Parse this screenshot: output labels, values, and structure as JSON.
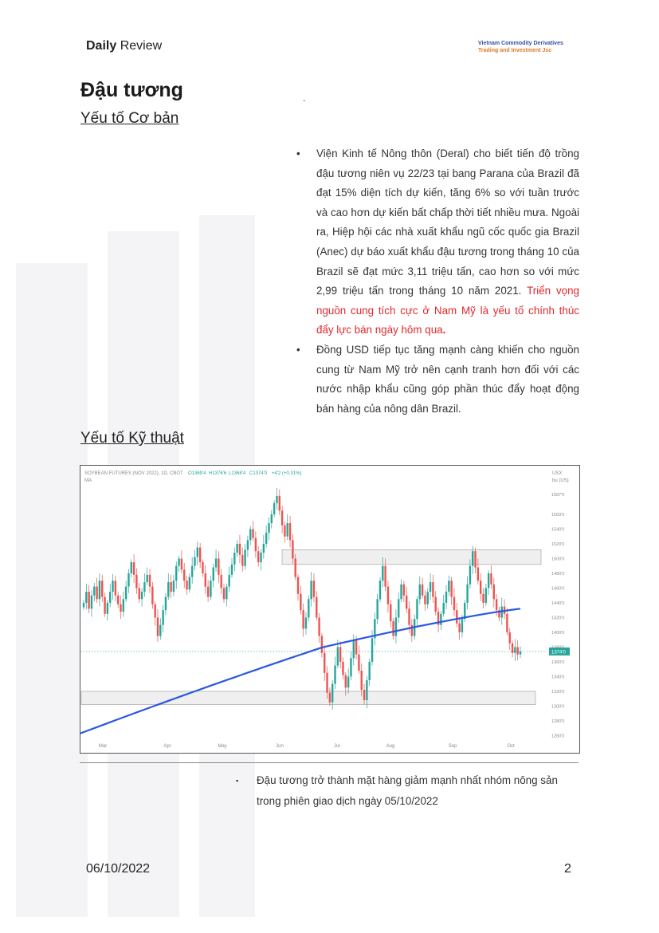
{
  "header": {
    "daily_bold": "Daily",
    "daily_rest": "Review",
    "company_line1": "Vietnam Commodity Derivatives",
    "company_line2": "Trading and Investment Jsc"
  },
  "page": {
    "title": "Đậu tương",
    "dot": ".",
    "section_fundamental": "Yếu tố Cơ bản",
    "section_technical": "Yếu tố Kỹ thuật"
  },
  "bullets": [
    {
      "text": "Viện Kinh tế Nông thôn (Deral) cho biết tiến độ trồng đậu tương niên vụ 22/23 tại bang Parana của Brazil đã đạt 15% diện tích dự kiến, tăng 6% so với tuần trước và cao hơn dự kiến bất chấp thời tiết nhiều mưa. Ngoài ra, Hiệp hội các nhà xuất khẩu ngũ cốc quốc gia Brazil (Anec) dự báo xuất khẩu đậu tương trong tháng 10 của Brazil sẽ đạt mức 3,11 triệu tấn, cao hơn so với mức 2,99 triệu tấn trong tháng 10 năm 2021. ",
      "highlight": "Triển vọng nguồn cung tích cực ở Nam Mỹ là yếu tố chính thúc đẩy lực bán ngày hôm qua",
      "end": "."
    },
    {
      "text": "Đồng USD tiếp tục tăng mạnh càng khiến cho nguồn cung từ Nam Mỹ trở nên cạnh tranh hơn đối với các nước nhập khẩu cũng góp phần thúc đẩy hoạt động bán hàng của nông dân Brazil."
    }
  ],
  "bullet_marker": "•",
  "caption": {
    "marker": "▪",
    "text": "Đậu tương trở thành mặt hàng giảm mạnh nhất nhóm nông sản trong phiên giao dịch ngày 05/10/2022"
  },
  "footer": {
    "date": "06/10/2022",
    "page_number": "2"
  },
  "chart_data": {
    "type": "candlestick",
    "title": "SOYBEAN FUTURES (NOV 2022), 1D, CBOT",
    "ohlc_label": {
      "o": "O1369'4",
      "h": "H1376'6",
      "l": "L1368'4",
      "c": "C1374'0",
      "change": "+4'2 (+0.31%)"
    },
    "indicator": "MA",
    "currency_label": "USX",
    "unit_label": "bu (US)",
    "last_price_label": "1374'0",
    "months": [
      "Mar",
      "Apr",
      "May",
      "Jun",
      "Jul",
      "Aug",
      "Sep",
      "Oct"
    ],
    "y_ticks": [
      "1587'0",
      "1560'0",
      "1540'0",
      "1520'0",
      "1500'0",
      "1480'0",
      "1460'0",
      "1440'0",
      "1420'0",
      "1400'0",
      "1380'0",
      "1360'0",
      "1340'0",
      "1320'0",
      "1300'0",
      "1280'0",
      "1260'0"
    ],
    "ylim": [
      1255,
      1600
    ],
    "last_price": 1374,
    "resistance_zone": [
      1492,
      1512
    ],
    "support_zone": [
      1302,
      1320
    ],
    "ma_start": 1263,
    "ma_end": 1432,
    "colors": {
      "up": "#26a69a",
      "down": "#ef5350",
      "ma": "#2a58e0",
      "zone": "#efefef"
    },
    "closes": [
      1440,
      1455,
      1432,
      1450,
      1462,
      1445,
      1470,
      1448,
      1425,
      1440,
      1455,
      1470,
      1450,
      1438,
      1428,
      1445,
      1462,
      1480,
      1495,
      1478,
      1460,
      1445,
      1455,
      1468,
      1478,
      1462,
      1438,
      1420,
      1395,
      1410,
      1430,
      1448,
      1468,
      1455,
      1470,
      1490,
      1500,
      1485,
      1470,
      1458,
      1475,
      1490,
      1502,
      1515,
      1495,
      1480,
      1462,
      1448,
      1470,
      1488,
      1500,
      1478,
      1460,
      1445,
      1462,
      1478,
      1492,
      1508,
      1520,
      1505,
      1490,
      1512,
      1525,
      1540,
      1528,
      1510,
      1495,
      1508,
      1520,
      1535,
      1548,
      1560,
      1575,
      1585,
      1565,
      1545,
      1530,
      1548,
      1525,
      1500,
      1475,
      1452,
      1430,
      1405,
      1420,
      1445,
      1470,
      1448,
      1420,
      1395,
      1372,
      1345,
      1318,
      1305,
      1330,
      1355,
      1380,
      1360,
      1342,
      1325,
      1340,
      1365,
      1390,
      1370,
      1348,
      1322,
      1308,
      1335,
      1360,
      1392,
      1418,
      1445,
      1470,
      1490,
      1462,
      1438,
      1415,
      1395,
      1420,
      1445,
      1465,
      1450,
      1432,
      1410,
      1395,
      1418,
      1445,
      1465,
      1450,
      1438,
      1455,
      1468,
      1448,
      1428,
      1410,
      1425,
      1440,
      1455,
      1470,
      1448,
      1430,
      1412,
      1400,
      1418,
      1440,
      1465,
      1490,
      1510,
      1488,
      1470,
      1452,
      1440,
      1460,
      1480,
      1465,
      1445,
      1430,
      1420,
      1435,
      1425,
      1400,
      1385,
      1372,
      1380,
      1370,
      1374
    ]
  }
}
